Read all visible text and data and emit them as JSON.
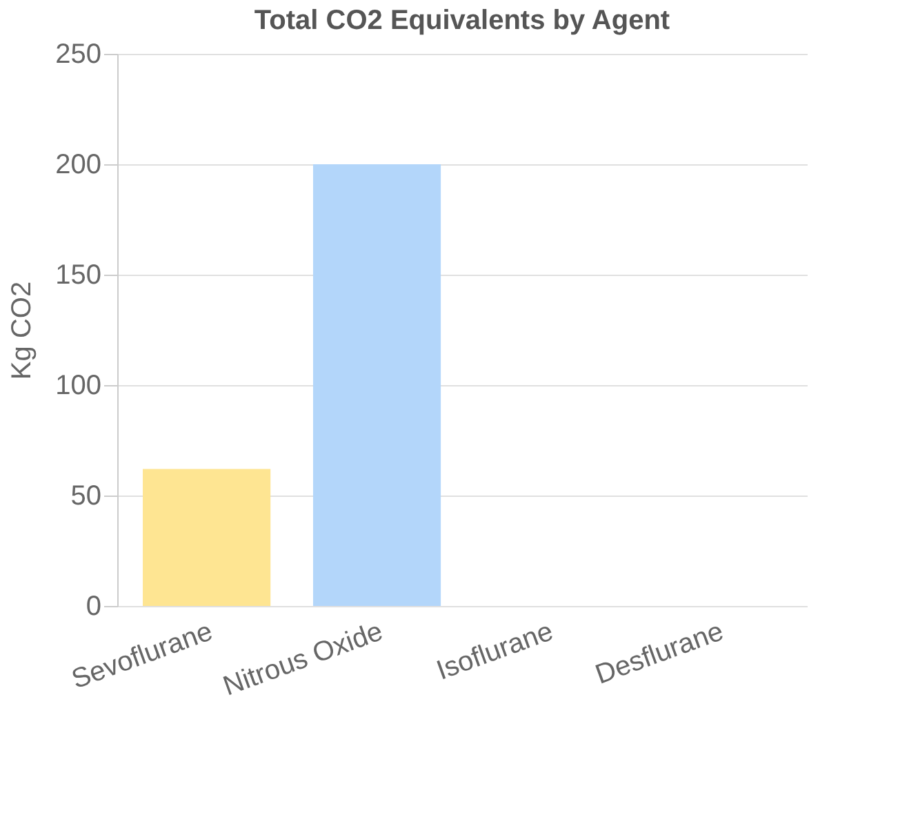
{
  "chart_data": {
    "type": "bar",
    "title": "Total CO2 Equivalents by Agent",
    "ylabel": "Kg CO2",
    "categories": [
      "Sevoflurane",
      "Nitrous Oxide",
      "Isoflurane",
      "Desflurane"
    ],
    "values": [
      62,
      200,
      0,
      0
    ],
    "colors": [
      "#fee592",
      "#b3d6fa",
      "#f9b3c3",
      "#a4dede"
    ],
    "ylim": [
      0,
      250
    ],
    "yticks": [
      0,
      50,
      100,
      150,
      200,
      250
    ],
    "grid": "y"
  }
}
